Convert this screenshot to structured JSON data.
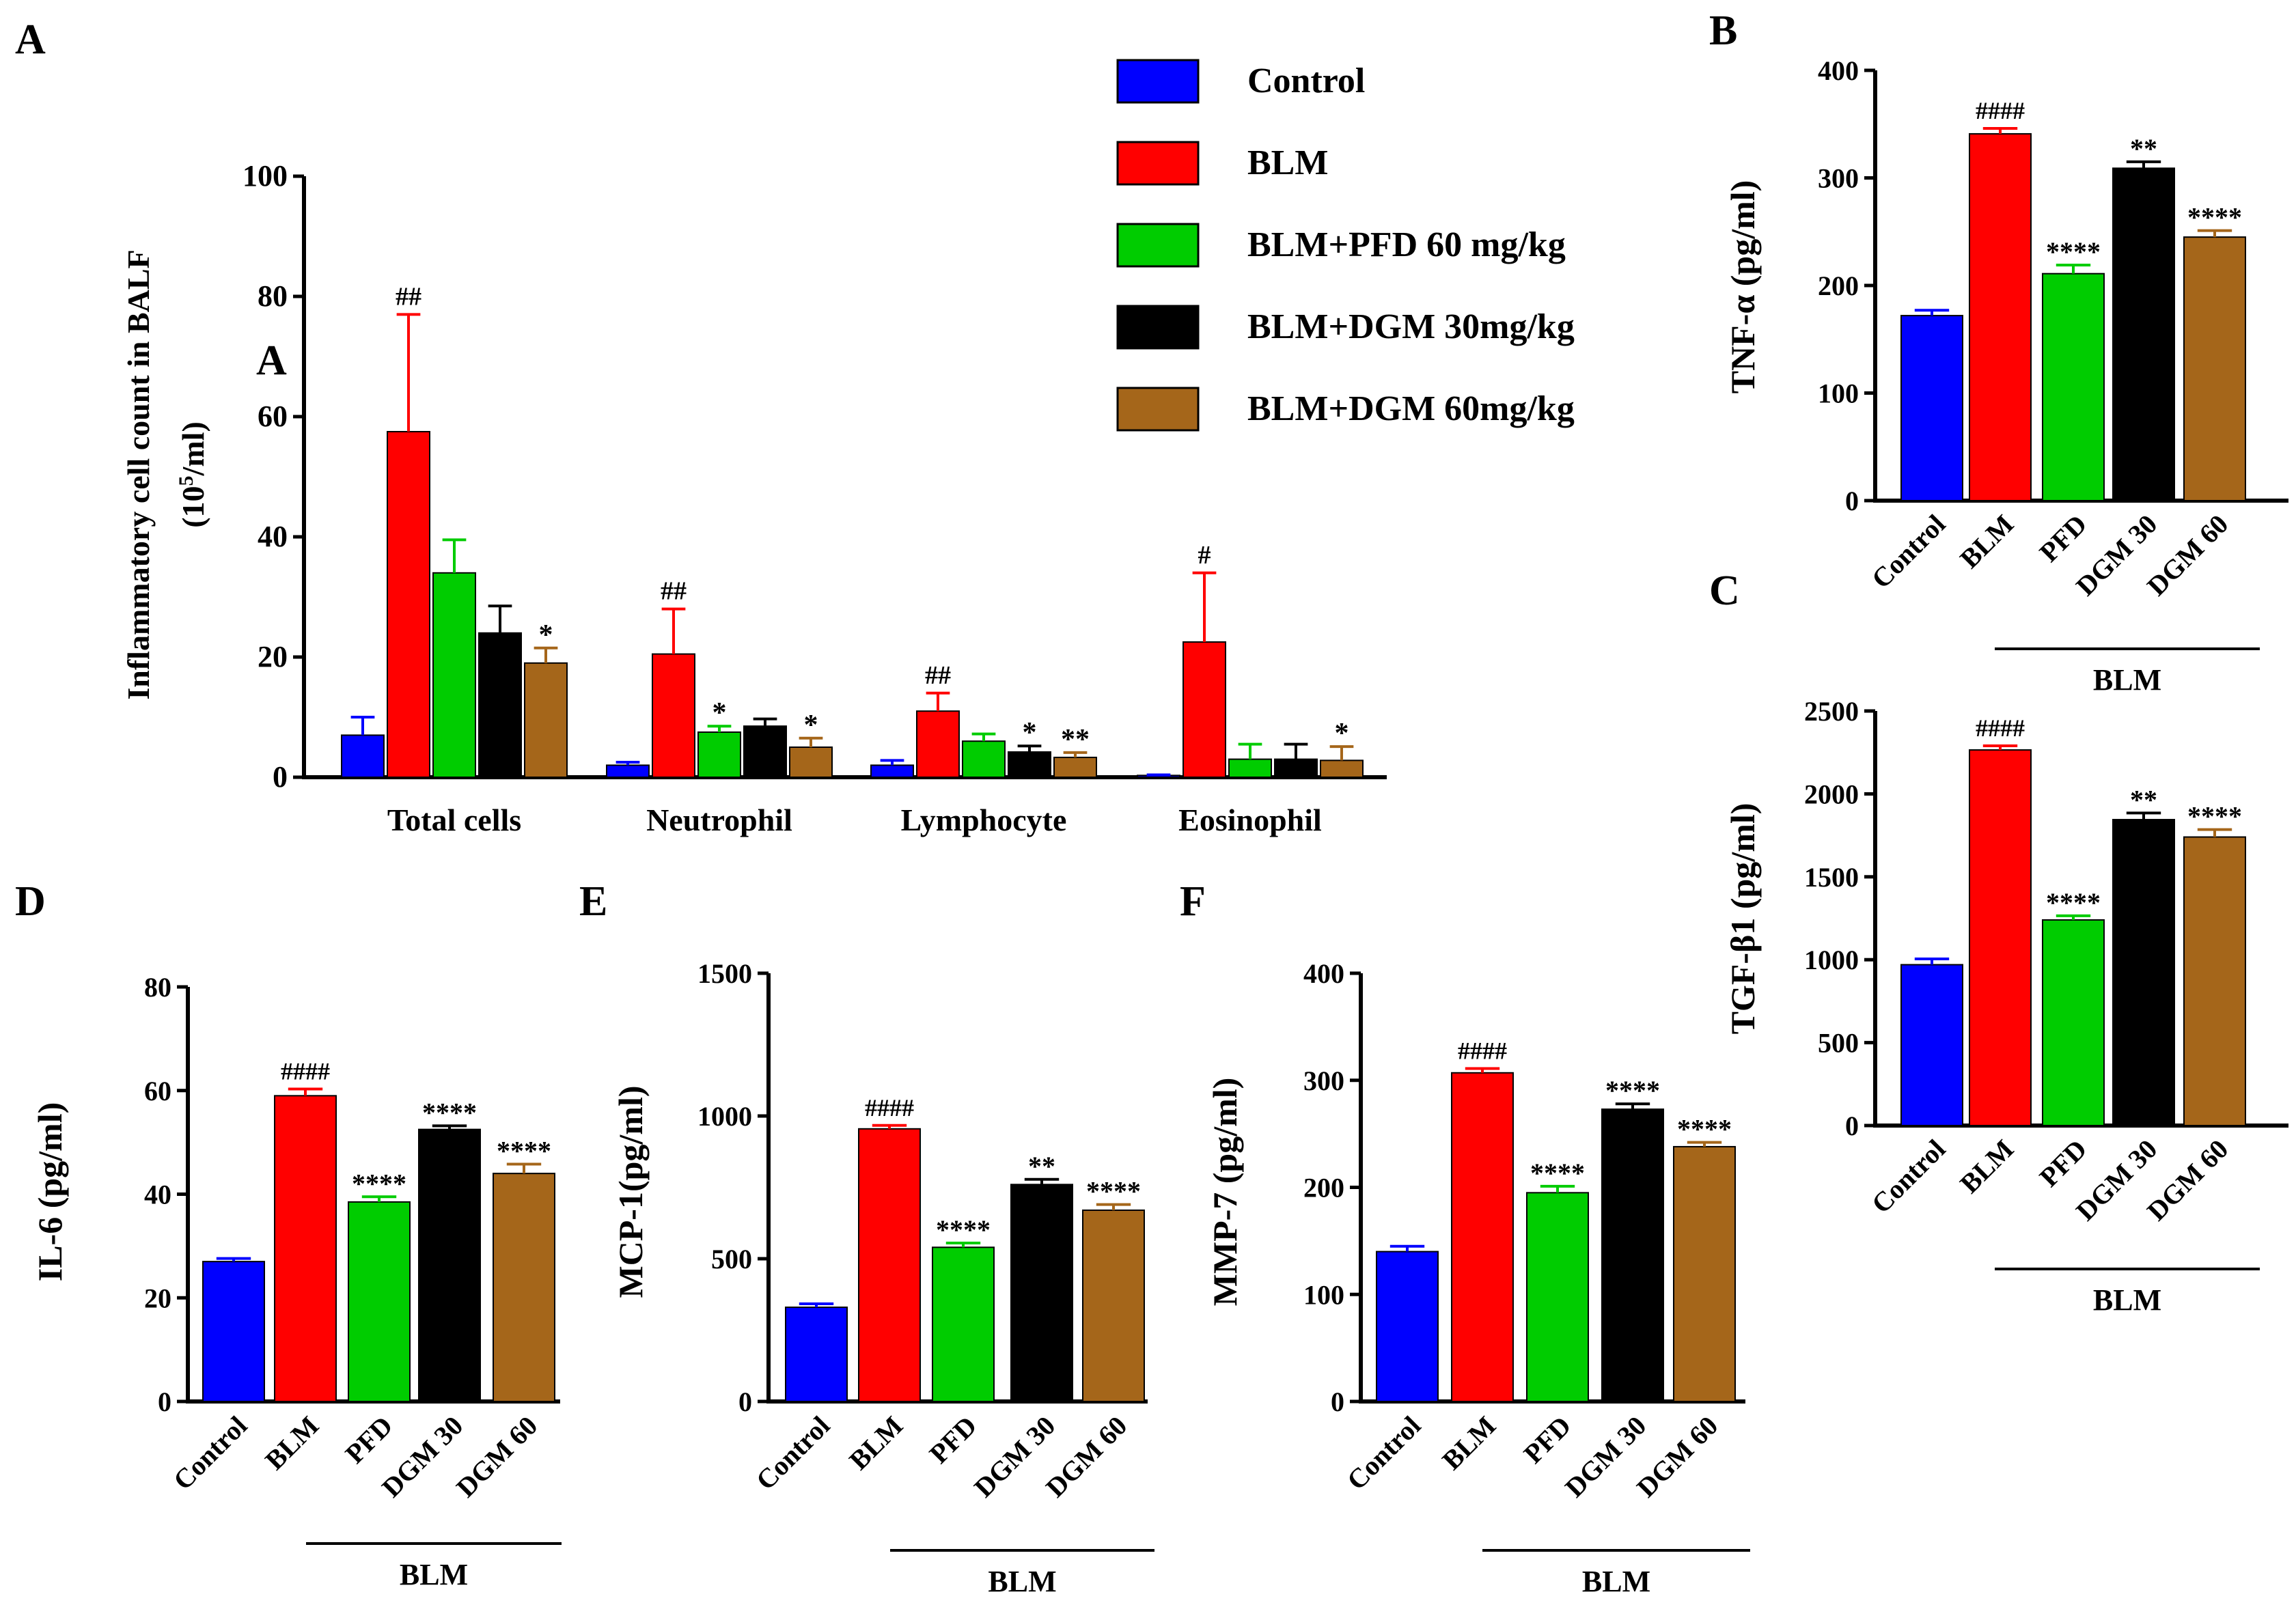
{
  "colors": {
    "control": "#0000FF",
    "blm": "#FF0000",
    "pfd": "#00CC00",
    "dgm30": "#000000",
    "dgm60": "#A5661A"
  },
  "legend": {
    "items": [
      "Control",
      "BLM",
      "BLM+PFD 60 mg/kg",
      "BLM+DGM 30mg/kg",
      "BLM+DGM 60mg/kg"
    ]
  },
  "chart_data": [
    {
      "panel": "A",
      "type": "bar",
      "inner_label": "A",
      "ylabel": "Inflammatory cell count in BALF",
      "ylabel_unit": "(10^5/ml)",
      "ylim": [
        0,
        100
      ],
      "yticks": [
        0,
        20,
        40,
        60,
        80,
        100
      ],
      "categories": [
        "Total cells",
        "Neutrophil",
        "Lymphocyte",
        "Eosinophil"
      ],
      "series": [
        {
          "name": "Control",
          "values": [
            7,
            2,
            2,
            0.3
          ],
          "errors": [
            3,
            0.5,
            0.8,
            0.1
          ],
          "annotations": [
            "",
            "",
            "",
            ""
          ]
        },
        {
          "name": "BLM",
          "values": [
            57.5,
            20.5,
            11,
            22.5
          ],
          "errors": [
            19.5,
            7.5,
            3,
            11.5
          ],
          "annotations": [
            "##",
            "##",
            "##",
            "#"
          ]
        },
        {
          "name": "BLM+PFD 60 mg/kg",
          "values": [
            34,
            7.5,
            6,
            3
          ],
          "errors": [
            5.5,
            1,
            1.2,
            2.5
          ],
          "annotations": [
            "",
            "*",
            "",
            ""
          ]
        },
        {
          "name": "BLM+DGM 30mg/kg",
          "values": [
            24,
            8.5,
            4.2,
            3
          ],
          "errors": [
            4.5,
            1.2,
            1,
            2.5
          ],
          "annotations": [
            "",
            "",
            "*",
            ""
          ]
        },
        {
          "name": "BLM+DGM 60mg/kg",
          "values": [
            19,
            5,
            3.3,
            2.8
          ],
          "errors": [
            2.5,
            1.5,
            0.8,
            2.3
          ],
          "annotations": [
            "*",
            "*",
            "**",
            "*"
          ]
        }
      ]
    },
    {
      "panel": "B",
      "type": "bar",
      "ylabel": "TNF-α (pg/ml)",
      "ylim": [
        0,
        400
      ],
      "yticks": [
        0,
        100,
        200,
        300,
        400
      ],
      "categories": [
        "Control",
        "BLM",
        "PFD",
        "DGM 30",
        "DGM 60"
      ],
      "values": [
        172,
        341,
        211,
        309,
        245
      ],
      "errors": [
        5,
        5,
        8,
        6,
        6
      ],
      "annotations": [
        "",
        "####",
        "****",
        "**",
        "****"
      ],
      "group_label": "BLM"
    },
    {
      "panel": "C",
      "type": "bar",
      "ylabel": "TGF-β1 (pg/ml)",
      "ylim": [
        0,
        2500
      ],
      "yticks": [
        0,
        500,
        1000,
        1500,
        2000,
        2500
      ],
      "categories": [
        "Control",
        "BLM",
        "PFD",
        "DGM 30",
        "DGM 60"
      ],
      "values": [
        970,
        2265,
        1240,
        1845,
        1740
      ],
      "errors": [
        35,
        25,
        25,
        40,
        45
      ],
      "annotations": [
        "",
        "####",
        "****",
        "**",
        "****"
      ],
      "group_label": "BLM"
    },
    {
      "panel": "D",
      "type": "bar",
      "ylabel": "IL-6 (pg/ml)",
      "ylim": [
        0,
        80
      ],
      "yticks": [
        0,
        20,
        40,
        60,
        80
      ],
      "categories": [
        "Control",
        "BLM",
        "PFD",
        "DGM 30",
        "DGM 60"
      ],
      "values": [
        27,
        59,
        38.5,
        52.5,
        44
      ],
      "errors": [
        0.6,
        1.3,
        1,
        0.7,
        1.8
      ],
      "annotations": [
        "",
        "####",
        "****",
        "****",
        "****"
      ],
      "group_label": "BLM"
    },
    {
      "panel": "E",
      "type": "bar",
      "ylabel": "MCP-1(pg/ml)",
      "ylim": [
        0,
        1500
      ],
      "yticks": [
        0,
        500,
        1000,
        1500
      ],
      "categories": [
        "Control",
        "BLM",
        "PFD",
        "DGM 30",
        "DGM 60"
      ],
      "values": [
        330,
        955,
        540,
        760,
        670
      ],
      "errors": [
        12,
        12,
        15,
        18,
        20
      ],
      "annotations": [
        "",
        "####",
        "****",
        "**",
        "****"
      ],
      "group_label": "BLM"
    },
    {
      "panel": "F",
      "type": "bar",
      "ylabel": "MMP-7 (pg/ml)",
      "ylim": [
        0,
        400
      ],
      "yticks": [
        0,
        100,
        200,
        300,
        400
      ],
      "categories": [
        "Control",
        "BLM",
        "PFD",
        "DGM 30",
        "DGM 60"
      ],
      "values": [
        140,
        307,
        195,
        273,
        238
      ],
      "errors": [
        5,
        4,
        6,
        5,
        4
      ],
      "annotations": [
        "",
        "####",
        "****",
        "****",
        "****"
      ],
      "group_label": "BLM"
    }
  ]
}
